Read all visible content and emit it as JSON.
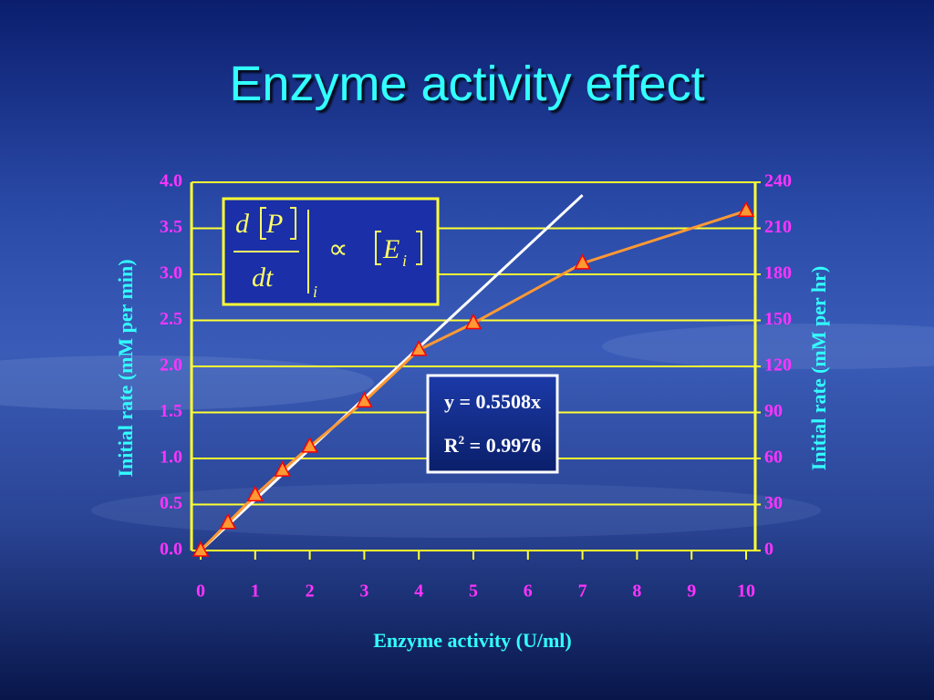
{
  "chart_data": {
    "type": "line",
    "title": "Enzyme activity effect",
    "x_label": "Enzyme activity (U/ml)",
    "y_label": "Initial rate (mM per min)",
    "y2_label": "Initial rate (mM per hr)",
    "x": [
      0,
      0.5,
      1,
      1.5,
      2,
      3,
      4,
      5,
      7,
      10
    ],
    "series": [
      {
        "color": "#ff9933",
        "values": [
          0,
          0.3,
          0.6,
          0.87,
          1.13,
          1.62,
          2.18,
          2.47,
          3.12,
          3.69
        ]
      }
    ],
    "trendline": {
      "color": "#ffffff",
      "x": [
        0,
        7
      ],
      "values": [
        0,
        3.86
      ]
    },
    "xlim": [
      0,
      10
    ],
    "xticks": [
      0,
      1,
      2,
      3,
      4,
      5,
      6,
      7,
      8,
      9,
      10
    ],
    "ylim": [
      0,
      4
    ],
    "yticks": [
      {
        "value": 0,
        "label": "0.0"
      },
      0.5,
      {
        "value": 1,
        "label": "1.0"
      },
      1.5,
      {
        "value": 2,
        "label": "2.0"
      },
      2.5,
      {
        "value": 3,
        "label": "3.0"
      },
      3.5,
      {
        "value": 4,
        "label": "4.0"
      }
    ],
    "y2lim": [
      0,
      240
    ],
    "y2ticks": [
      0,
      30,
      60,
      90,
      120,
      150,
      180,
      210,
      240
    ],
    "grid": true,
    "equation": {
      "line1": "y = 0.5508x",
      "r": "R",
      "r_sup": "2",
      "r_rest": " = 0.9976"
    },
    "formula": {
      "d": "d",
      "p": "P",
      "dt": "dt",
      "sub": "i",
      "prop": "∝",
      "e": "E",
      "e_sub": "i"
    }
  }
}
